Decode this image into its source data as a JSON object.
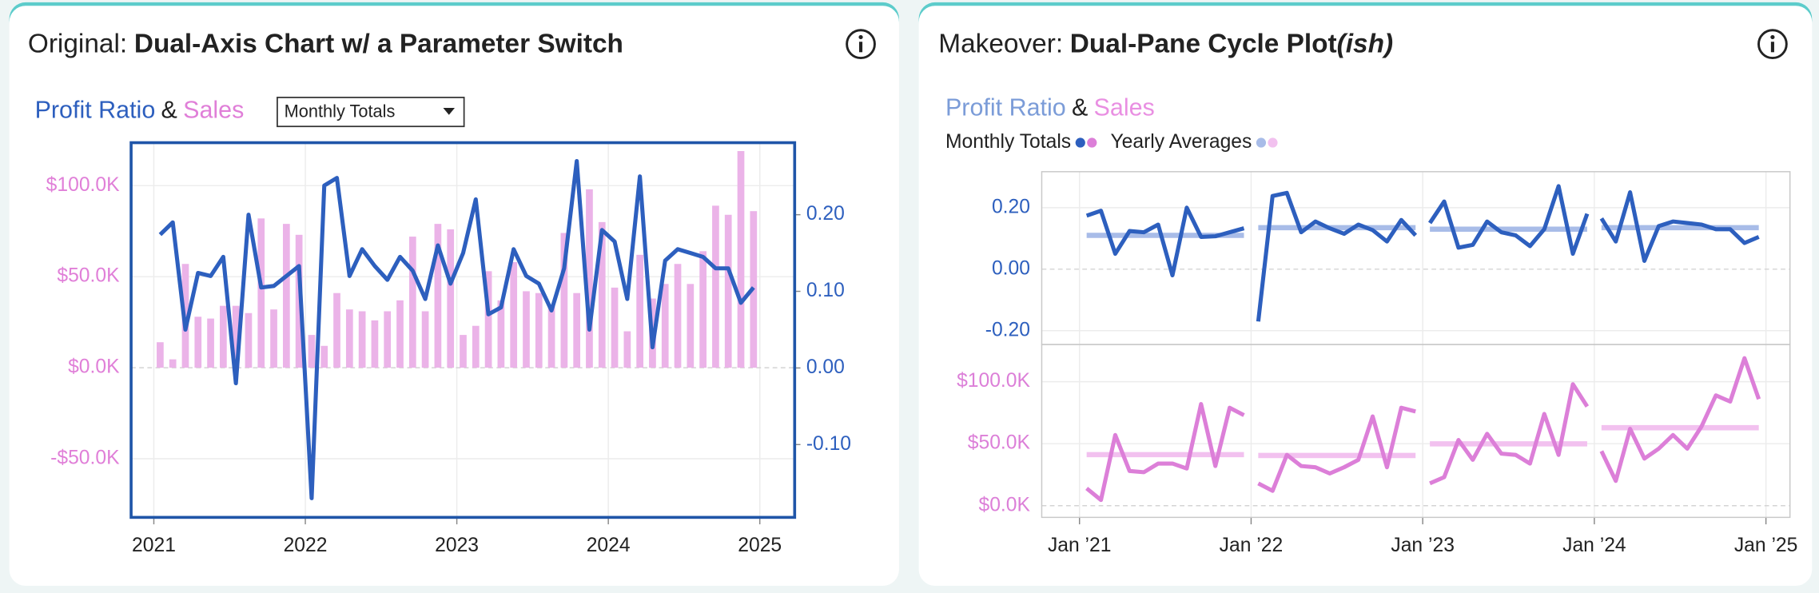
{
  "chart_data": [
    {
      "type": "dual_axis",
      "title_prefix": "Original:",
      "title": "Dual-Axis Chart w/ a Parameter Switch",
      "legend_joiner": "&",
      "parameter": "Monthly Totals",
      "x": [
        "2021-01",
        "2021-02",
        "2021-03",
        "2021-04",
        "2021-05",
        "2021-06",
        "2021-07",
        "2021-08",
        "2021-09",
        "2021-10",
        "2021-11",
        "2021-12",
        "2022-01",
        "2022-02",
        "2022-03",
        "2022-04",
        "2022-05",
        "2022-06",
        "2022-07",
        "2022-08",
        "2022-09",
        "2022-10",
        "2022-11",
        "2022-12",
        "2023-01",
        "2023-02",
        "2023-03",
        "2023-04",
        "2023-05",
        "2023-06",
        "2023-07",
        "2023-08",
        "2023-09",
        "2023-10",
        "2023-11",
        "2023-12",
        "2024-01",
        "2024-02",
        "2024-03",
        "2024-04",
        "2024-05",
        "2024-06",
        "2024-07",
        "2024-08",
        "2024-09",
        "2024-10",
        "2024-11",
        "2024-12"
      ],
      "series": [
        {
          "name": "Sales",
          "type": "bar",
          "axis": "y",
          "color": "#ebb3e8",
          "values": [
            14000,
            4600,
            57000,
            28000,
            27000,
            34000,
            34000,
            30000,
            82000,
            32000,
            79000,
            73000,
            18000,
            12000,
            41000,
            32000,
            31000,
            26000,
            31000,
            37000,
            72000,
            31000,
            79000,
            76000,
            18000,
            23000,
            53000,
            37000,
            58000,
            42000,
            41000,
            34000,
            74000,
            41000,
            98000,
            80000,
            44000,
            20000,
            62000,
            38000,
            46000,
            57000,
            46000,
            64000,
            89000,
            84000,
            119000,
            86000
          ]
        },
        {
          "name": "Profit Ratio",
          "type": "line",
          "axis": "y2",
          "color": "#2d5fbe",
          "values": [
            0.174,
            0.19,
            0.05,
            0.124,
            0.12,
            0.145,
            -0.02,
            0.2,
            0.105,
            0.107,
            0.12,
            0.133,
            -0.17,
            0.238,
            0.248,
            0.12,
            0.155,
            0.133,
            0.115,
            0.145,
            0.127,
            0.09,
            0.16,
            0.11,
            0.15,
            0.22,
            0.07,
            0.079,
            0.155,
            0.12,
            0.11,
            0.075,
            0.13,
            0.27,
            0.05,
            0.18,
            0.165,
            0.09,
            0.25,
            0.027,
            0.14,
            0.155,
            0.15,
            0.145,
            0.13,
            0.13,
            0.085,
            0.105
          ]
        }
      ],
      "xlim": [
        2020.85,
        2025.23
      ],
      "xticks": [
        2021,
        2022,
        2023,
        2024,
        2025
      ],
      "ylim": [
        -82200,
        123600
      ],
      "yticks": [
        {
          "value": -50000,
          "label": "-$50.0K"
        },
        {
          "value": 0,
          "label": "$0.0K"
        },
        {
          "value": 50000,
          "label": "$50.0K"
        },
        {
          "value": 100000,
          "label": "$100.0K"
        }
      ],
      "y2lim": [
        -0.195,
        0.294
      ],
      "y2ticks": [
        {
          "value": -0.1,
          "label": "-0.10"
        },
        {
          "value": 0,
          "label": "0.00"
        },
        {
          "value": 0.1,
          "label": "0.10"
        },
        {
          "value": 0.2,
          "label": "0.20"
        }
      ],
      "grid": true
    },
    {
      "type": "cycle",
      "title_prefix": "Makeover:",
      "title": "Dual-Pane Cycle Plot",
      "title_suffix": "(ish)",
      "legend_joiner": "&",
      "legend": [
        "Monthly Totals",
        "Yearly Averages"
      ],
      "x": [
        "2021-01",
        "2021-02",
        "2021-03",
        "2021-04",
        "2021-05",
        "2021-06",
        "2021-07",
        "2021-08",
        "2021-09",
        "2021-10",
        "2021-11",
        "2021-12",
        "2022-01",
        "2022-02",
        "2022-03",
        "2022-04",
        "2022-05",
        "2022-06",
        "2022-07",
        "2022-08",
        "2022-09",
        "2022-10",
        "2022-11",
        "2022-12",
        "2023-01",
        "2023-02",
        "2023-03",
        "2023-04",
        "2023-05",
        "2023-06",
        "2023-07",
        "2023-08",
        "2023-09",
        "2023-10",
        "2023-11",
        "2023-12",
        "2024-01",
        "2024-02",
        "2024-03",
        "2024-04",
        "2024-05",
        "2024-06",
        "2024-07",
        "2024-08",
        "2024-09",
        "2024-10",
        "2024-11",
        "2024-12"
      ],
      "xlim": [
        2020.78,
        2025.14
      ],
      "xticks": [
        {
          "value": 2021,
          "label": "Jan ’21"
        },
        {
          "value": 2022,
          "label": "Jan ’22"
        },
        {
          "value": 2023,
          "label": "Jan ’23"
        },
        {
          "value": 2024,
          "label": "Jan ’24"
        },
        {
          "value": 2025,
          "label": "Jan ’25"
        }
      ],
      "panes": [
        {
          "name": "Profit Ratio",
          "color": "#2d5fbe",
          "average_color": "#a8bce8",
          "values": [
            0.174,
            0.19,
            0.05,
            0.124,
            0.12,
            0.145,
            -0.02,
            0.2,
            0.105,
            0.107,
            0.12,
            0.133,
            -0.17,
            0.238,
            0.248,
            0.12,
            0.155,
            0.133,
            0.115,
            0.145,
            0.127,
            0.09,
            0.16,
            0.11,
            0.15,
            0.22,
            0.07,
            0.079,
            0.155,
            0.12,
            0.11,
            0.075,
            0.13,
            0.27,
            0.05,
            0.18,
            0.165,
            0.09,
            0.25,
            0.027,
            0.14,
            0.155,
            0.15,
            0.145,
            0.13,
            0.13,
            0.085,
            0.105
          ],
          "averages": [
            0.11,
            0.135,
            0.13,
            0.135
          ],
          "ylim": [
            -0.245,
            0.317
          ],
          "yticks": [
            {
              "value": -0.2,
              "label": "-0.20"
            },
            {
              "value": 0,
              "label": "0.00"
            },
            {
              "value": 0.2,
              "label": "0.20"
            }
          ]
        },
        {
          "name": "Sales",
          "color": "#dc7fd8",
          "average_color": "#f2c1ef",
          "values": [
            14000,
            4600,
            57000,
            28000,
            27000,
            34000,
            34000,
            30000,
            82000,
            32000,
            79000,
            73000,
            18000,
            12000,
            41000,
            32000,
            31000,
            26000,
            31000,
            37000,
            72000,
            31000,
            79000,
            76000,
            18000,
            23000,
            53000,
            37000,
            58000,
            42000,
            41000,
            34000,
            74000,
            41000,
            98000,
            80000,
            44000,
            20000,
            62000,
            38000,
            46000,
            57000,
            46000,
            64000,
            89000,
            84000,
            119000,
            86000
          ],
          "averages": [
            41200,
            40500,
            49900,
            62900
          ],
          "ylim": [
            -9400,
            130000
          ],
          "yticks": [
            {
              "value": 0,
              "label": "$0.0K"
            },
            {
              "value": 50000,
              "label": "$50.0K"
            },
            {
              "value": 100000,
              "label": "$100.0K"
            }
          ]
        }
      ],
      "grid": true
    }
  ]
}
